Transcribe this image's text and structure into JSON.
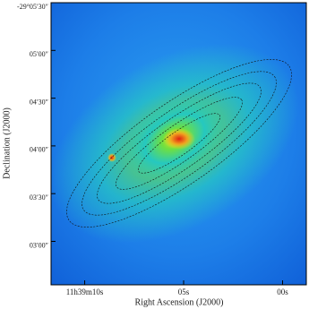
{
  "chart_data": {
    "type": "image",
    "xlabel": "Right Ascension (J2000)",
    "ylabel": "Declination (J2000)",
    "xlim": [
      11.7,
      -1.2
    ],
    "xticks": [
      {
        "value": 10,
        "label": "11h39m10s"
      },
      {
        "value": 5,
        "label": "05s"
      },
      {
        "value": 0,
        "label": "00s"
      }
    ],
    "ylim": [
      152.7,
      330
    ],
    "yticks": [
      {
        "value": 330,
        "label": "-29°05′30″"
      },
      {
        "value": 300,
        "label": "05′00″"
      },
      {
        "value": 270,
        "label": "04′30″"
      },
      {
        "value": 240,
        "label": "04′00″"
      },
      {
        "value": 210,
        "label": "03′30″"
      },
      {
        "value": 180,
        "label": "03′00″"
      }
    ]
  }
}
